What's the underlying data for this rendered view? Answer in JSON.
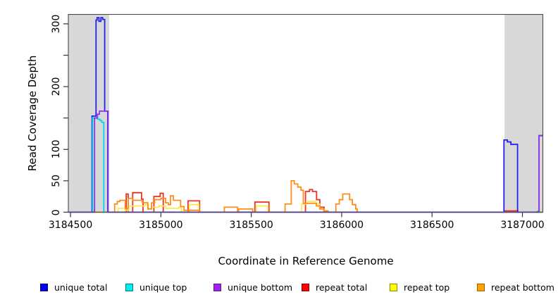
{
  "figure": {
    "background": "#ffffff",
    "shade_color": "#d8d8d8",
    "box_color": "#4a4a4a",
    "tick_color": "#333333",
    "text_color": "#000000"
  },
  "chart_data": {
    "type": "line",
    "subtype": "step-coverage",
    "title": "",
    "xlabel": "Coordinate in Reference Genome",
    "ylabel": "Read Coverage Depth",
    "xlim": [
      3184488,
      3187113
    ],
    "ylim": [
      0,
      315
    ],
    "x_ticks": [
      3184500,
      3185000,
      3185500,
      3186000,
      3186500,
      3187000
    ],
    "y_ticks": [
      0,
      50,
      100,
      150,
      200,
      250,
      300
    ],
    "y_tick_labels": [
      "0",
      "50",
      "100",
      "",
      "200",
      "",
      "300"
    ],
    "grid": false,
    "legend_position": "bottom",
    "shaded_regions": [
      [
        3184488,
        3184714
      ],
      [
        3186901,
        3187113
      ]
    ],
    "draw_order": [
      3,
      4,
      5,
      0,
      1,
      2
    ],
    "series": [
      {
        "name": "unique total",
        "color": "#2222ec",
        "legend_fill": "#0000ee",
        "legend_border": "#000080",
        "steps": [
          [
            3184488,
            0
          ],
          [
            3184619,
            153
          ],
          [
            3184641,
            306
          ],
          [
            3184647,
            310
          ],
          [
            3184657,
            304
          ],
          [
            3184668,
            310
          ],
          [
            3184678,
            307
          ],
          [
            3184689,
            161
          ],
          [
            3184706,
            0
          ],
          [
            3186898,
            115
          ],
          [
            3186917,
            112
          ],
          [
            3186936,
            108
          ],
          [
            3186973,
            0
          ],
          [
            3187092,
            122
          ],
          [
            3187113,
            122
          ]
        ]
      },
      {
        "name": "unique top",
        "color": "#00d8e6",
        "legend_fill": "#00eeee",
        "legend_border": "#007888",
        "steps": [
          [
            3184488,
            0
          ],
          [
            3184622,
            150
          ],
          [
            3184650,
            148
          ],
          [
            3184663,
            146
          ],
          [
            3184673,
            143
          ],
          [
            3184684,
            0
          ],
          [
            3187113,
            0
          ]
        ]
      },
      {
        "name": "unique bottom",
        "color": "#8c35e6",
        "legend_fill": "#a020f0",
        "legend_border": "#581c87",
        "steps": [
          [
            3184488,
            0
          ],
          [
            3184633,
            150
          ],
          [
            3184649,
            156
          ],
          [
            3184660,
            161
          ],
          [
            3184708,
            0
          ],
          [
            3187092,
            122
          ],
          [
            3187113,
            122
          ]
        ]
      },
      {
        "name": "repeat total",
        "color": "#ee3322",
        "legend_fill": "#ff0000",
        "legend_border": "#8b0000",
        "steps": [
          [
            3184488,
            0
          ],
          [
            3184808,
            29
          ],
          [
            3184819,
            0
          ],
          [
            3184844,
            31
          ],
          [
            3184893,
            21
          ],
          [
            3184901,
            0
          ],
          [
            3184961,
            25
          ],
          [
            3184996,
            30
          ],
          [
            3185013,
            0
          ],
          [
            3185150,
            18
          ],
          [
            3185214,
            0
          ],
          [
            3185520,
            16
          ],
          [
            3185598,
            0
          ],
          [
            3185800,
            33
          ],
          [
            3185822,
            36
          ],
          [
            3185839,
            33
          ],
          [
            3185861,
            20
          ],
          [
            3185879,
            8
          ],
          [
            3185903,
            0
          ],
          [
            3186901,
            2
          ],
          [
            3186975,
            0
          ],
          [
            3187113,
            0
          ]
        ]
      },
      {
        "name": "repeat top",
        "color": "#ffe74d",
        "legend_fill": "#ffff00",
        "legend_border": "#8a8a00",
        "steps": [
          [
            3184488,
            0
          ],
          [
            3184763,
            6
          ],
          [
            3184803,
            3
          ],
          [
            3184822,
            10
          ],
          [
            3184909,
            12
          ],
          [
            3184930,
            5
          ],
          [
            3184950,
            8
          ],
          [
            3184990,
            10
          ],
          [
            3185028,
            6
          ],
          [
            3185100,
            8
          ],
          [
            3185114,
            0
          ],
          [
            3185157,
            12
          ],
          [
            3185210,
            0
          ],
          [
            3185527,
            10
          ],
          [
            3185592,
            0
          ],
          [
            3185779,
            13
          ],
          [
            3185805,
            17
          ],
          [
            3185857,
            13
          ],
          [
            3185877,
            5
          ],
          [
            3185899,
            0
          ],
          [
            3187113,
            0
          ]
        ]
      },
      {
        "name": "repeat bottom",
        "color": "#ff8c1f",
        "legend_fill": "#ffa500",
        "legend_border": "#a05a00",
        "steps": [
          [
            3184488,
            0
          ],
          [
            3184744,
            13
          ],
          [
            3184759,
            17
          ],
          [
            3184773,
            19
          ],
          [
            3184803,
            6
          ],
          [
            3184819,
            22
          ],
          [
            3184845,
            19
          ],
          [
            3184898,
            15
          ],
          [
            3184928,
            5
          ],
          [
            3184948,
            15
          ],
          [
            3184965,
            20
          ],
          [
            3185000,
            22
          ],
          [
            3185026,
            15
          ],
          [
            3185041,
            12
          ],
          [
            3185053,
            26
          ],
          [
            3185069,
            19
          ],
          [
            3185109,
            9
          ],
          [
            3185128,
            3
          ],
          [
            3185214,
            0
          ],
          [
            3185351,
            8
          ],
          [
            3185424,
            0
          ],
          [
            3185430,
            5
          ],
          [
            3185508,
            0
          ],
          [
            3185687,
            13
          ],
          [
            3185721,
            50
          ],
          [
            3185738,
            45
          ],
          [
            3185757,
            40
          ],
          [
            3185775,
            35
          ],
          [
            3185788,
            14
          ],
          [
            3185860,
            10
          ],
          [
            3185880,
            5
          ],
          [
            3185903,
            2
          ],
          [
            3185925,
            0
          ],
          [
            3185968,
            13
          ],
          [
            3185987,
            20
          ],
          [
            3186006,
            29
          ],
          [
            3186044,
            20
          ],
          [
            3186059,
            12
          ],
          [
            3186078,
            5
          ],
          [
            3186086,
            0
          ],
          [
            3187113,
            0
          ]
        ]
      }
    ],
    "extra_marks": [
      {
        "color": "#22aa22",
        "x1": 3187078,
        "x2": 3187090,
        "value": 1
      }
    ]
  }
}
